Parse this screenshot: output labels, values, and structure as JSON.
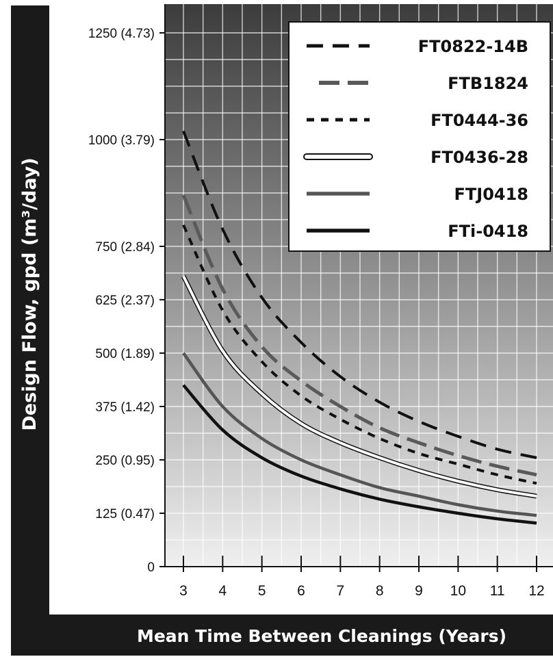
{
  "chart_data": {
    "type": "line",
    "xlabel": "Mean Time Between Cleanings (Years)",
    "ylabel": "Design Flow, gpd (m³/day)",
    "x": [
      3,
      4,
      5,
      6,
      7,
      8,
      9,
      10,
      11,
      12
    ],
    "x_tick_labels": [
      "3",
      "4",
      "5",
      "6",
      "7",
      "8",
      "9",
      "10",
      "11",
      "12"
    ],
    "xlim": [
      3,
      12
    ],
    "y_ticks": [
      0,
      125,
      250,
      375,
      500,
      625,
      750,
      1000,
      1250
    ],
    "y_tick_labels": [
      "0",
      "125 (0.47)",
      "250 (0.95)",
      "375 (1.42)",
      "500 (1.89)",
      "625 (2.37)",
      "750 (2.84)",
      "1000 (3.79)",
      "1250 (4.73)"
    ],
    "ylim": [
      0,
      1250
    ],
    "grid": true,
    "legend_position": "top-right",
    "series": [
      {
        "name": "FT0822-14B",
        "style": "long-dash",
        "color": "#111111",
        "values": [
          1020,
          790,
          630,
          525,
          445,
          385,
          340,
          305,
          275,
          255
        ]
      },
      {
        "name": "FTB1824",
        "style": "medium-dash",
        "color": "#5a5a5a",
        "values": [
          870,
          650,
          515,
          435,
          375,
          325,
          290,
          260,
          235,
          215
        ]
      },
      {
        "name": "FT0444-36",
        "style": "short-dash",
        "color": "#111111",
        "values": [
          800,
          600,
          480,
          400,
          345,
          300,
          265,
          240,
          215,
          195
        ]
      },
      {
        "name": "FT0436-28",
        "style": "white-solid",
        "color": "#ffffff",
        "values": [
          680,
          505,
          405,
          335,
          290,
          255,
          225,
          200,
          180,
          165
        ]
      },
      {
        "name": "FTJ0418",
        "style": "solid",
        "color": "#555555",
        "values": [
          500,
          375,
          300,
          250,
          215,
          185,
          165,
          145,
          130,
          120
        ]
      },
      {
        "name": "FTi-0418",
        "style": "solid",
        "color": "#111111",
        "values": [
          425,
          320,
          255,
          212,
          182,
          158,
          140,
          125,
          112,
          102
        ]
      }
    ]
  }
}
